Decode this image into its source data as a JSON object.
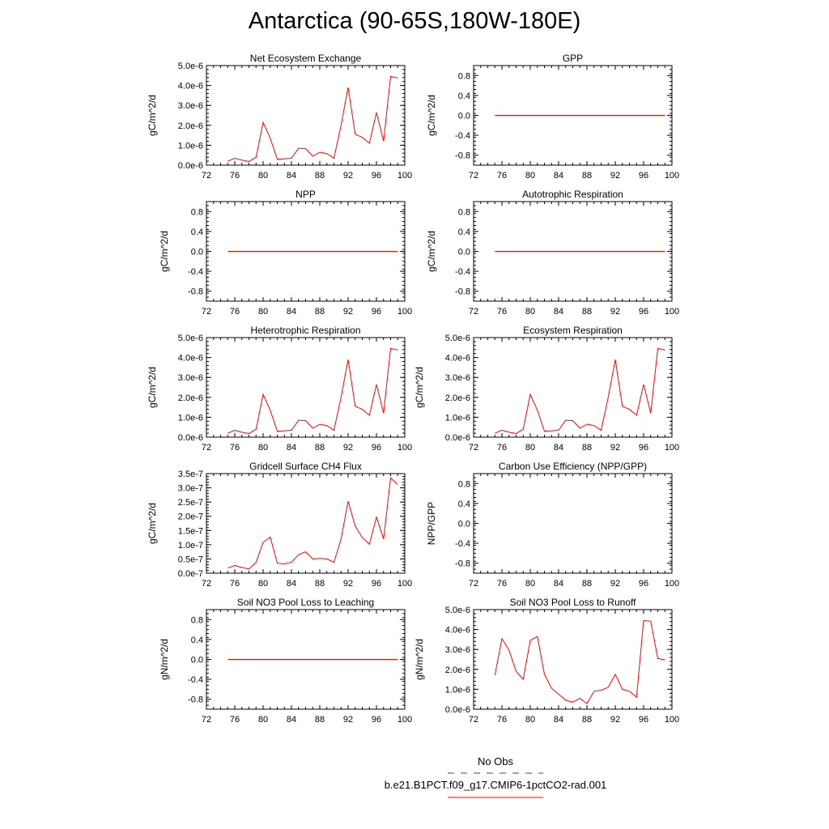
{
  "title": "Antarctica (90-65S,180W-180E)",
  "colors": {
    "model_line": "#ff0000",
    "obs_line": "#3b3bd6",
    "axis": "#000000"
  },
  "legend": {
    "obs_label": "No Obs",
    "model_label": "b.e21.B1PCT.f09_g17.CMIP6-1pctCO2-rad.001"
  },
  "chart_data": [
    {
      "type": "line",
      "title": "Net Ecosystem Exchange",
      "ylabel": "gC/m^2/d",
      "xlim": [
        72,
        100
      ],
      "xticks": [
        "72",
        "76",
        "80",
        "84",
        "88",
        "92",
        "96",
        "100"
      ],
      "ylim": [
        0,
        5e-06
      ],
      "yticks": [
        "0.0e-6",
        "1.0e-6",
        "2.0e-6",
        "3.0e-6",
        "4.0e-6",
        "5.0e-6"
      ],
      "x": [
        75,
        76,
        77,
        78,
        79,
        80,
        81,
        82,
        83,
        84,
        85,
        86,
        87,
        88,
        89,
        90,
        91,
        92,
        93,
        94,
        95,
        96,
        97,
        98,
        99
      ],
      "series": [
        {
          "values": [
            2e-07,
            3.5e-07,
            2.5e-07,
            1.8e-07,
            4e-07,
            2.15e-06,
            1.35e-06,
            3e-07,
            3.2e-07,
            3.5e-07,
            8.5e-07,
            8.3e-07,
            4.5e-07,
            6.5e-07,
            5.8e-07,
            3.5e-07,
            2e-06,
            3.9e-06,
            1.55e-06,
            1.4e-06,
            1.1e-06,
            2.65e-06,
            1.2e-06,
            4.45e-06,
            4.38e-06
          ]
        }
      ]
    },
    {
      "type": "line",
      "title": "GPP",
      "ylabel": "gC/m^2/d",
      "xlim": [
        72,
        100
      ],
      "xticks": [
        "72",
        "76",
        "80",
        "84",
        "88",
        "92",
        "96",
        "100"
      ],
      "ylim": [
        -1,
        1
      ],
      "yticks": [
        "-0.8",
        "-0.4",
        "0.0",
        "0.4",
        "0.8"
      ],
      "x": [
        75,
        99
      ],
      "series": [
        {
          "values": [
            0,
            0
          ]
        }
      ]
    },
    {
      "type": "line",
      "title": "NPP",
      "ylabel": "gC/m^2/d",
      "xlim": [
        72,
        100
      ],
      "xticks": [
        "72",
        "76",
        "80",
        "84",
        "88",
        "92",
        "96",
        "100"
      ],
      "ylim": [
        -1,
        1
      ],
      "yticks": [
        "-0.8",
        "-0.4",
        "0.0",
        "0.4",
        "0.8"
      ],
      "x": [
        75,
        99
      ],
      "series": [
        {
          "values": [
            0,
            0
          ]
        }
      ]
    },
    {
      "type": "line",
      "title": "Autotrophic Respiration",
      "ylabel": "gC/m^2/d",
      "xlim": [
        72,
        100
      ],
      "xticks": [
        "72",
        "76",
        "80",
        "84",
        "88",
        "92",
        "96",
        "100"
      ],
      "ylim": [
        -1,
        1
      ],
      "yticks": [
        "-0.8",
        "-0.4",
        "0.0",
        "0.4",
        "0.8"
      ],
      "x": [
        75,
        99
      ],
      "series": [
        {
          "values": [
            0,
            0
          ]
        }
      ]
    },
    {
      "type": "line",
      "title": "Heterotrophic Respiration",
      "ylabel": "gC/m^2/d",
      "xlim": [
        72,
        100
      ],
      "xticks": [
        "72",
        "76",
        "80",
        "84",
        "88",
        "92",
        "96",
        "100"
      ],
      "ylim": [
        0,
        5e-06
      ],
      "yticks": [
        "0.0e-6",
        "1.0e-6",
        "2.0e-6",
        "3.0e-6",
        "4.0e-6",
        "5.0e-6"
      ],
      "x": [
        75,
        76,
        77,
        78,
        79,
        80,
        81,
        82,
        83,
        84,
        85,
        86,
        87,
        88,
        89,
        90,
        91,
        92,
        93,
        94,
        95,
        96,
        97,
        98,
        99
      ],
      "series": [
        {
          "values": [
            2e-07,
            3.5e-07,
            2.5e-07,
            1.8e-07,
            4e-07,
            2.15e-06,
            1.35e-06,
            3e-07,
            3.2e-07,
            3.5e-07,
            8.5e-07,
            8.3e-07,
            4.5e-07,
            6.5e-07,
            5.8e-07,
            3.5e-07,
            2e-06,
            3.9e-06,
            1.55e-06,
            1.4e-06,
            1.1e-06,
            2.65e-06,
            1.2e-06,
            4.45e-06,
            4.38e-06
          ]
        }
      ]
    },
    {
      "type": "line",
      "title": "Ecosystem Respiration",
      "ylabel": "gC/m^2/d",
      "xlim": [
        72,
        100
      ],
      "xticks": [
        "72",
        "76",
        "80",
        "84",
        "88",
        "92",
        "96",
        "100"
      ],
      "ylim": [
        0,
        5e-06
      ],
      "yticks": [
        "0.0e-6",
        "1.0e-6",
        "2.0e-6",
        "3.0e-6",
        "4.0e-6",
        "5.0e-6"
      ],
      "x": [
        75,
        76,
        77,
        78,
        79,
        80,
        81,
        82,
        83,
        84,
        85,
        86,
        87,
        88,
        89,
        90,
        91,
        92,
        93,
        94,
        95,
        96,
        97,
        98,
        99
      ],
      "series": [
        {
          "values": [
            2e-07,
            3.5e-07,
            2.5e-07,
            1.8e-07,
            4e-07,
            2.15e-06,
            1.35e-06,
            3e-07,
            3.2e-07,
            3.5e-07,
            8.5e-07,
            8.3e-07,
            4.5e-07,
            6.5e-07,
            5.8e-07,
            3.5e-07,
            2e-06,
            3.9e-06,
            1.55e-06,
            1.4e-06,
            1.1e-06,
            2.65e-06,
            1.2e-06,
            4.45e-06,
            4.38e-06
          ]
        }
      ]
    },
    {
      "type": "line",
      "title": "Gridcell Surface CH4 Flux",
      "ylabel": "gC/m^2/d",
      "xlim": [
        72,
        100
      ],
      "xticks": [
        "72",
        "76",
        "80",
        "84",
        "88",
        "92",
        "96",
        "100"
      ],
      "ylim": [
        0,
        3.5e-07
      ],
      "yticks": [
        "0.0e-7",
        "0.5e-7",
        "1.0e-7",
        "1.5e-7",
        "2.0e-7",
        "2.5e-7",
        "3.0e-7",
        "3.5e-7"
      ],
      "x": [
        75,
        76,
        77,
        78,
        79,
        80,
        81,
        82,
        83,
        84,
        85,
        86,
        87,
        88,
        89,
        90,
        91,
        92,
        93,
        94,
        95,
        96,
        97,
        98,
        99
      ],
      "series": [
        {
          "values": [
            1.8e-08,
            2.7e-08,
            2e-08,
            1.5e-08,
            3.8e-08,
            1.08e-07,
            1.27e-07,
            3.5e-08,
            3.3e-08,
            3.8e-08,
            6.5e-08,
            7.5e-08,
            5e-08,
            5.2e-08,
            5e-08,
            3.8e-08,
            1.2e-07,
            2.53e-07,
            1.65e-07,
            1.25e-07,
            1.02e-07,
            1.97e-07,
            1.2e-07,
            3.35e-07,
            3.12e-07
          ]
        }
      ]
    },
    {
      "type": "line",
      "title": "Carbon Use Efficiency (NPP/GPP)",
      "ylabel": "NPP/GPP",
      "xlim": [
        72,
        100
      ],
      "xticks": [
        "72",
        "76",
        "80",
        "84",
        "88",
        "92",
        "96",
        "100"
      ],
      "ylim": [
        -1,
        1
      ],
      "yticks": [
        "-0.8",
        "-0.4",
        "0.0",
        "0.4",
        "0.8"
      ],
      "x": [],
      "series": [
        {
          "values": []
        }
      ]
    },
    {
      "type": "line",
      "title": "Soil NO3 Pool Loss to Leaching",
      "ylabel": "gN/m^2/d",
      "xlim": [
        72,
        100
      ],
      "xticks": [
        "72",
        "76",
        "80",
        "84",
        "88",
        "92",
        "96",
        "100"
      ],
      "ylim": [
        -1,
        1
      ],
      "yticks": [
        "-0.8",
        "-0.4",
        "0.0",
        "0.4",
        "0.8"
      ],
      "x": [
        75,
        99
      ],
      "series": [
        {
          "values": [
            0,
            0
          ]
        }
      ]
    },
    {
      "type": "line",
      "title": "Soil NO3 Pool Loss to Runoff",
      "ylabel": "gN/m^2/d",
      "xlim": [
        72,
        100
      ],
      "xticks": [
        "72",
        "76",
        "80",
        "84",
        "88",
        "92",
        "96",
        "100"
      ],
      "ylim": [
        0,
        5e-06
      ],
      "yticks": [
        "0.0e-6",
        "1.0e-6",
        "2.0e-6",
        "3.0e-6",
        "4.0e-6",
        "5.0e-6"
      ],
      "x": [
        75,
        76,
        77,
        78,
        79,
        80,
        81,
        82,
        83,
        84,
        85,
        86,
        87,
        88,
        89,
        90,
        91,
        92,
        93,
        94,
        95,
        96,
        97,
        98,
        99
      ],
      "series": [
        {
          "values": [
            1.7e-06,
            3.55e-06,
            2.95e-06,
            1.9e-06,
            1.5e-06,
            3.45e-06,
            3.65e-06,
            1.75e-06,
            1.05e-06,
            7.5e-07,
            4.5e-07,
            3.5e-07,
            5.5e-07,
            2.8e-07,
            9e-07,
            9.5e-07,
            1.1e-06,
            1.75e-06,
            1e-06,
            9e-07,
            6e-07,
            4.45e-06,
            4.42e-06,
            2.55e-06,
            2.48e-06
          ]
        }
      ]
    }
  ]
}
